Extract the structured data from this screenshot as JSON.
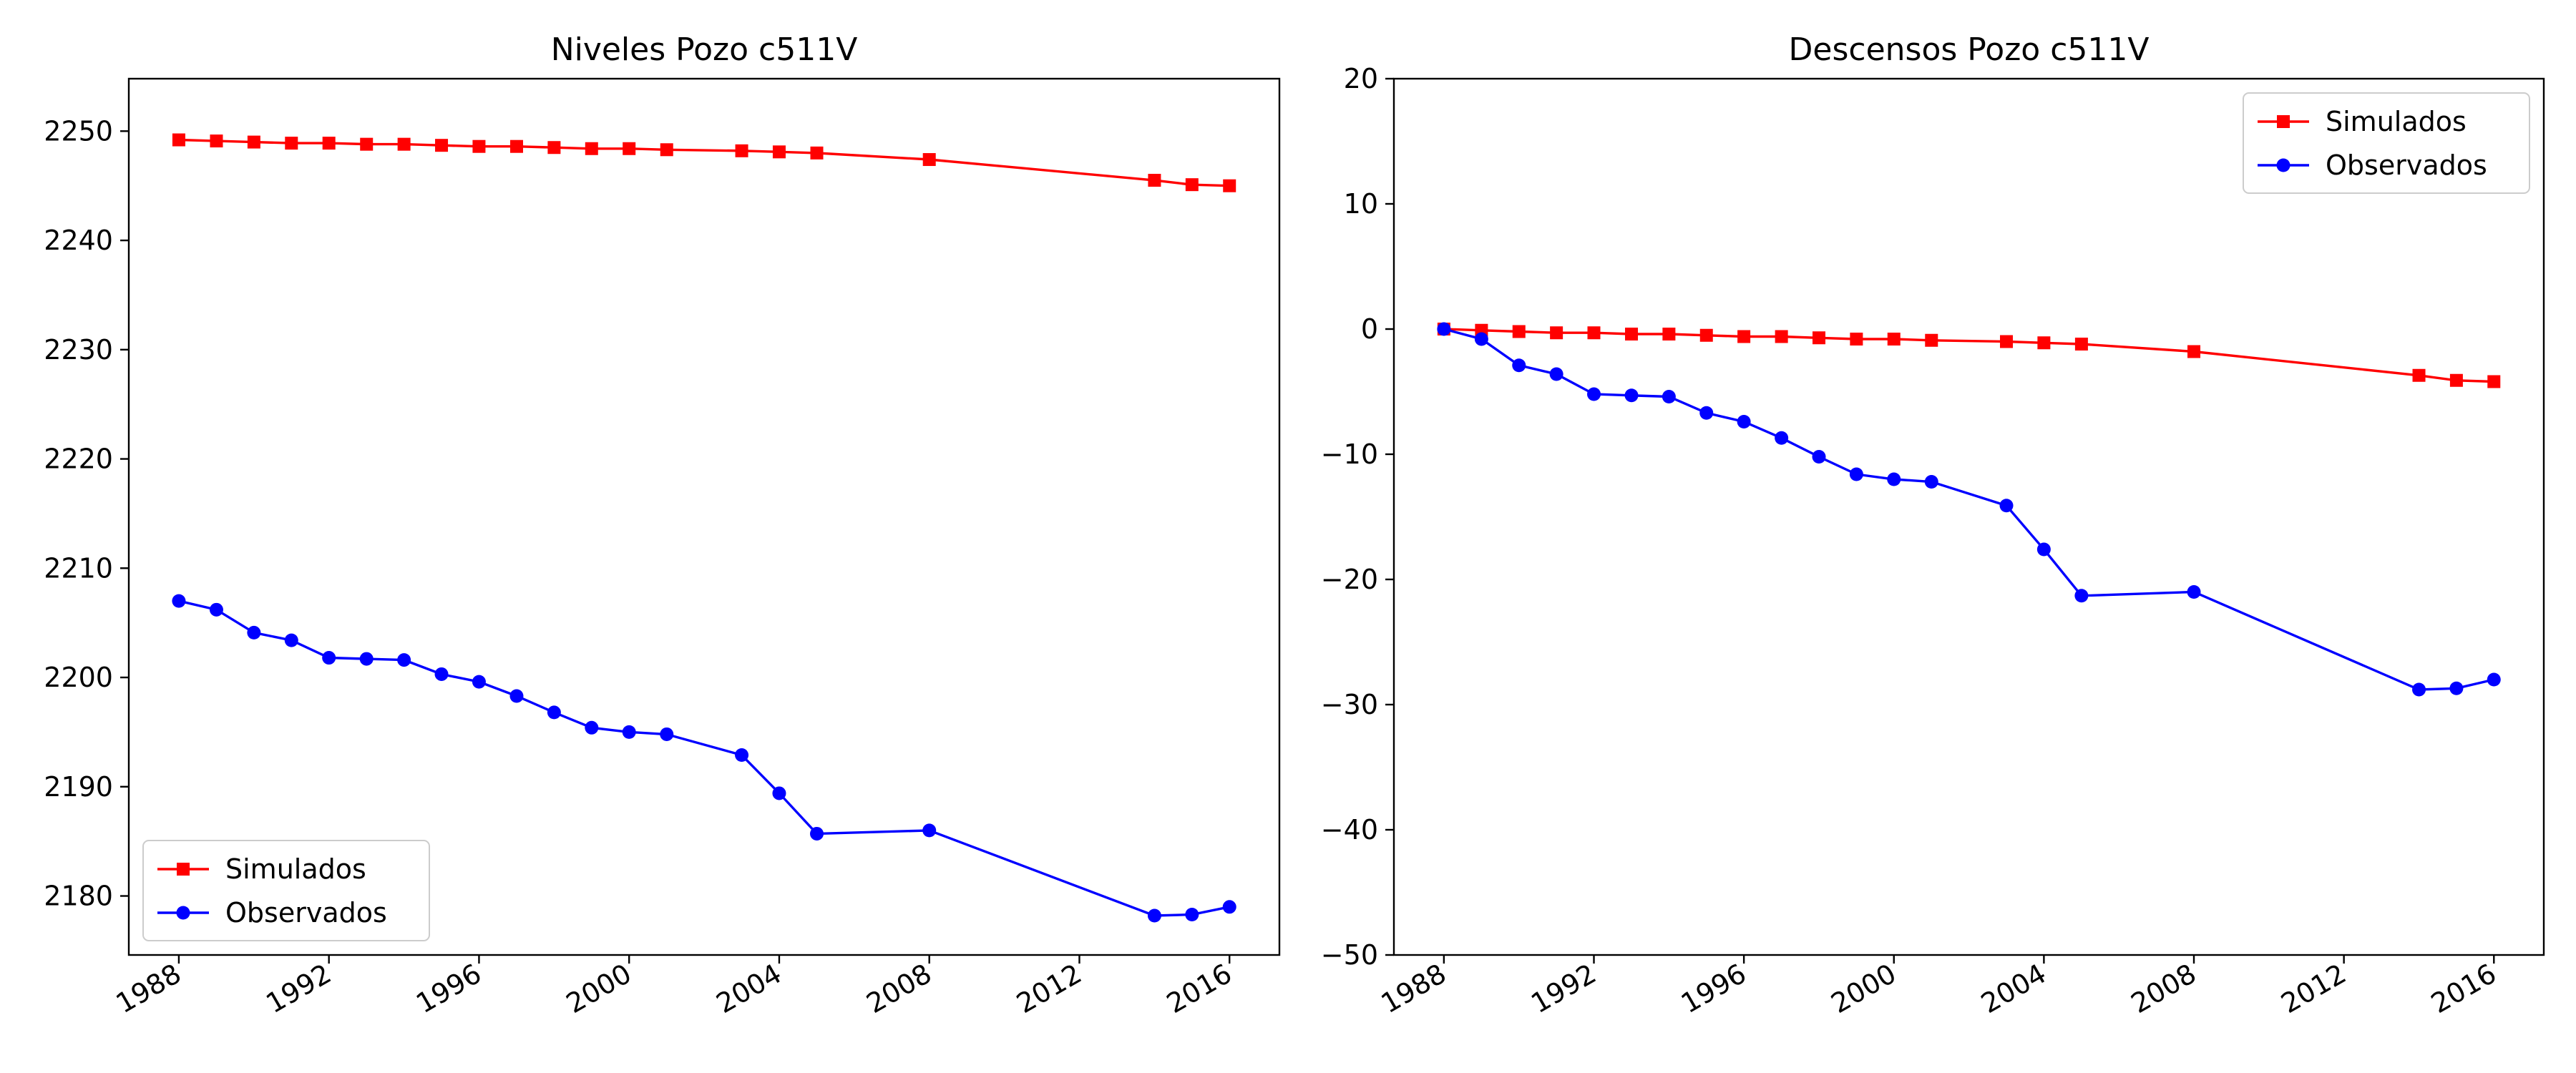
{
  "colors": {
    "simulados": "#ff0000",
    "observados": "#0000ff"
  },
  "chart_data": [
    {
      "type": "line",
      "title": "Niveles Pozo c511V",
      "xlabel": "",
      "ylabel": "",
      "x_type": "date",
      "xlim": [
        "1986-09-01",
        "2017-05-01"
      ],
      "ylim": [
        2174.6,
        2254.8
      ],
      "x_ticks": [
        "1988",
        "1992",
        "1996",
        "2000",
        "2004",
        "2008",
        "2012",
        "2016"
      ],
      "y_ticks": [
        2180,
        2190,
        2200,
        2210,
        2220,
        2230,
        2240,
        2250
      ],
      "legend_position": "lower-left",
      "grid": false,
      "x": [
        "1988-01-01",
        "1989-01-01",
        "1990-01-01",
        "1991-01-01",
        "1992-01-01",
        "1993-01-01",
        "1994-01-01",
        "1995-01-01",
        "1996-01-01",
        "1997-01-01",
        "1998-01-01",
        "1999-01-01",
        "2000-01-01",
        "2001-01-01",
        "2003-01-01",
        "2004-01-01",
        "2005-01-01",
        "2008-01-01",
        "2014-01-01",
        "2015-01-01",
        "2016-01-01"
      ],
      "series": [
        {
          "name": "Simulados",
          "marker": "square",
          "color": "#ff0000",
          "values": [
            2249.2,
            2249.1,
            2249.0,
            2248.9,
            2248.9,
            2248.8,
            2248.8,
            2248.7,
            2248.6,
            2248.6,
            2248.5,
            2248.4,
            2248.4,
            2248.3,
            2248.2,
            2248.1,
            2248.0,
            2247.4,
            2245.5,
            2245.1,
            2245.0
          ]
        },
        {
          "name": "Observados",
          "marker": "circle",
          "color": "#0000ff",
          "values": [
            2207.0,
            2206.2,
            2204.1,
            2203.4,
            2201.8,
            2201.7,
            2201.6,
            2200.3,
            2199.6,
            2198.3,
            2196.8,
            2195.4,
            2195.0,
            2194.8,
            2192.9,
            2189.4,
            2185.7,
            2186.0,
            2178.2,
            2178.3,
            2179.0
          ]
        }
      ]
    },
    {
      "type": "line",
      "title": "Descensos Pozo c511V",
      "xlabel": "",
      "ylabel": "",
      "x_type": "date",
      "xlim": [
        "1986-09-01",
        "2017-05-01"
      ],
      "ylim": [
        -50,
        20
      ],
      "x_ticks": [
        "1988",
        "1992",
        "1996",
        "2000",
        "2004",
        "2008",
        "2012",
        "2016"
      ],
      "y_ticks": [
        -50,
        -40,
        -30,
        -20,
        -10,
        0,
        10,
        20
      ],
      "legend_position": "upper-right",
      "grid": false,
      "x": [
        "1988-01-01",
        "1989-01-01",
        "1990-01-01",
        "1991-01-01",
        "1992-01-01",
        "1993-01-01",
        "1994-01-01",
        "1995-01-01",
        "1996-01-01",
        "1997-01-01",
        "1998-01-01",
        "1999-01-01",
        "2000-01-01",
        "2001-01-01",
        "2003-01-01",
        "2004-01-01",
        "2005-01-01",
        "2008-01-01",
        "2014-01-01",
        "2015-01-01",
        "2016-01-01"
      ],
      "series": [
        {
          "name": "Simulados",
          "marker": "square",
          "color": "#ff0000",
          "values": [
            0.0,
            -0.1,
            -0.2,
            -0.3,
            -0.3,
            -0.4,
            -0.4,
            -0.5,
            -0.6,
            -0.6,
            -0.7,
            -0.8,
            -0.8,
            -0.9,
            -1.0,
            -1.1,
            -1.2,
            -1.8,
            -3.7,
            -4.1,
            -4.2
          ]
        },
        {
          "name": "Observados",
          "marker": "circle",
          "color": "#0000ff",
          "values": [
            0.0,
            -0.8,
            -2.9,
            -3.6,
            -5.2,
            -5.3,
            -5.4,
            -6.7,
            -7.4,
            -8.7,
            -10.2,
            -11.6,
            -12.0,
            -12.2,
            -14.1,
            -17.6,
            -21.3,
            -21.0,
            -28.8,
            -28.7,
            -28.0
          ]
        }
      ]
    }
  ]
}
